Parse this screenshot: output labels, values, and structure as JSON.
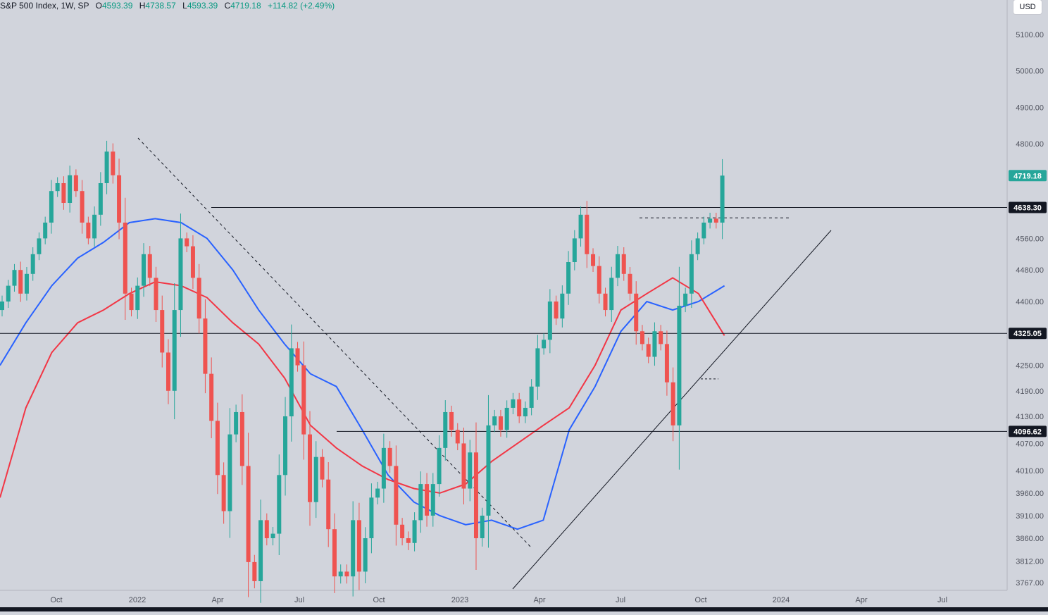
{
  "legend": {
    "symbol": "S&P 500 Index, 1W, SP",
    "open_label": "O",
    "open": "4593.39",
    "high_label": "H",
    "high": "4738.57",
    "low_label": "L",
    "low": "4593.39",
    "close_label": "C",
    "close": "4719.18",
    "change": "+114.82 (+2.49%)"
  },
  "currency": "USD",
  "colors": {
    "up": "#26a69a",
    "down": "#ef5350",
    "ma_fast": "#2962ff",
    "ma_slow": "#f23645",
    "last_price_badge": "#26a69a",
    "level_badge": "#131722",
    "background": "#d1d4dc"
  },
  "chart_data": {
    "type": "candlestick",
    "timeframe": "1W",
    "ylim": [
      3767,
      5140
    ],
    "y_ticks": [
      "5100.00",
      "5000.00",
      "4900.00",
      "4800.00",
      "4560.00",
      "4480.00",
      "4400.00",
      "4250.00",
      "4190.00",
      "4130.00",
      "4070.00",
      "4010.00",
      "3960.00",
      "3910.00",
      "3860.00",
      "3812.00",
      "3767.00"
    ],
    "x_ticks": [
      "Oct",
      "2022",
      "Apr",
      "Jul",
      "Oct",
      "2023",
      "Apr",
      "Jul",
      "Oct",
      "2024",
      "Apr",
      "Jul"
    ],
    "price_labels": [
      "4719.18",
      "4638.30",
      "4325.05",
      "4096.62"
    ],
    "levels": [
      4638.3,
      4325.05,
      4096.62
    ],
    "last_price": 4719.18,
    "moving_averages": [
      {
        "color": "#2962ff",
        "values": [
          4250,
          4350,
          4440,
          4510,
          4550,
          4600,
          4610,
          4600,
          4560,
          4480,
          4380,
          4300,
          4230,
          4200,
          4100,
          4000,
          3940,
          3910,
          3890,
          3900,
          3880,
          3900,
          4100,
          4200,
          4330,
          4400,
          4380,
          4400,
          4440
        ]
      },
      {
        "color": "#f23645",
        "values": [
          3950,
          4150,
          4280,
          4350,
          4380,
          4420,
          4450,
          4440,
          4410,
          4350,
          4300,
          4220,
          4110,
          4060,
          4020,
          3990,
          3970,
          3960,
          3980,
          4030,
          4070,
          4110,
          4150,
          4250,
          4380,
          4420,
          4460,
          4420,
          4320
        ]
      }
    ],
    "candles": [
      {
        "o": 4380,
        "c": 4400
      },
      {
        "o": 4400,
        "c": 4440
      },
      {
        "o": 4440,
        "c": 4480
      },
      {
        "o": 4480,
        "c": 4420
      },
      {
        "o": 4420,
        "c": 4470
      },
      {
        "o": 4470,
        "c": 4520
      },
      {
        "o": 4520,
        "c": 4560
      },
      {
        "o": 4560,
        "c": 4600
      },
      {
        "o": 4600,
        "c": 4680
      },
      {
        "o": 4680,
        "c": 4700
      },
      {
        "o": 4700,
        "c": 4650
      },
      {
        "o": 4650,
        "c": 4720
      },
      {
        "o": 4720,
        "c": 4680
      },
      {
        "o": 4680,
        "c": 4600
      },
      {
        "o": 4600,
        "c": 4560
      },
      {
        "o": 4560,
        "c": 4620
      },
      {
        "o": 4620,
        "c": 4700
      },
      {
        "o": 4700,
        "c": 4780
      },
      {
        "o": 4780,
        "c": 4720
      },
      {
        "o": 4720,
        "c": 4600
      },
      {
        "o": 4600,
        "c": 4420
      },
      {
        "o": 4420,
        "c": 4380
      },
      {
        "o": 4380,
        "c": 4440
      },
      {
        "o": 4440,
        "c": 4520
      },
      {
        "o": 4520,
        "c": 4460
      },
      {
        "o": 4460,
        "c": 4380
      },
      {
        "o": 4380,
        "c": 4280
      },
      {
        "o": 4280,
        "c": 4190
      },
      {
        "o": 4190,
        "c": 4380
      },
      {
        "o": 4380,
        "c": 4560
      },
      {
        "o": 4560,
        "c": 4540
      },
      {
        "o": 4540,
        "c": 4460
      },
      {
        "o": 4460,
        "c": 4360
      },
      {
        "o": 4360,
        "c": 4230
      },
      {
        "o": 4230,
        "c": 4120
      },
      {
        "o": 4120,
        "c": 4000
      },
      {
        "o": 4000,
        "c": 3920
      },
      {
        "o": 3920,
        "c": 4090
      },
      {
        "o": 4090,
        "c": 4140
      },
      {
        "o": 4140,
        "c": 4020
      },
      {
        "o": 4020,
        "c": 3810
      },
      {
        "o": 3810,
        "c": 3770
      },
      {
        "o": 3770,
        "c": 3900
      },
      {
        "o": 3900,
        "c": 3860
      },
      {
        "o": 3860,
        "c": 3870
      },
      {
        "o": 3870,
        "c": 4000
      },
      {
        "o": 4000,
        "c": 4130
      },
      {
        "o": 4130,
        "c": 4290
      },
      {
        "o": 4290,
        "c": 4250
      },
      {
        "o": 4250,
        "c": 4090
      },
      {
        "o": 4090,
        "c": 3940
      },
      {
        "o": 3940,
        "c": 4040
      },
      {
        "o": 4040,
        "c": 3990
      },
      {
        "o": 3990,
        "c": 3880
      },
      {
        "o": 3880,
        "c": 3780
      },
      {
        "o": 3780,
        "c": 3790
      },
      {
        "o": 3790,
        "c": 3780
      },
      {
        "o": 3780,
        "c": 3900
      },
      {
        "o": 3900,
        "c": 3790
      },
      {
        "o": 3790,
        "c": 3860
      },
      {
        "o": 3860,
        "c": 3950
      },
      {
        "o": 3950,
        "c": 3970
      },
      {
        "o": 3970,
        "c": 4060
      },
      {
        "o": 4060,
        "c": 4020
      },
      {
        "o": 4020,
        "c": 3890
      },
      {
        "o": 3890,
        "c": 3860
      },
      {
        "o": 3860,
        "c": 3850
      },
      {
        "o": 3850,
        "c": 3900
      },
      {
        "o": 3900,
        "c": 3980
      },
      {
        "o": 3980,
        "c": 3910
      },
      {
        "o": 3910,
        "c": 3980
      },
      {
        "o": 3980,
        "c": 4060
      },
      {
        "o": 4060,
        "c": 4140
      },
      {
        "o": 4140,
        "c": 4100
      },
      {
        "o": 4100,
        "c": 4070
      },
      {
        "o": 4070,
        "c": 3970
      },
      {
        "o": 3970,
        "c": 4050
      },
      {
        "o": 4050,
        "c": 3860
      },
      {
        "o": 3860,
        "c": 3910
      },
      {
        "o": 3910,
        "c": 4110
      },
      {
        "o": 4110,
        "c": 4130
      },
      {
        "o": 4130,
        "c": 4100
      },
      {
        "o": 4100,
        "c": 4150
      },
      {
        "o": 4150,
        "c": 4170
      },
      {
        "o": 4170,
        "c": 4130
      },
      {
        "o": 4130,
        "c": 4150
      },
      {
        "o": 4150,
        "c": 4200
      },
      {
        "o": 4200,
        "c": 4290
      },
      {
        "o": 4290,
        "c": 4310
      },
      {
        "o": 4310,
        "c": 4400
      },
      {
        "o": 4400,
        "c": 4360
      },
      {
        "o": 4360,
        "c": 4420
      },
      {
        "o": 4420,
        "c": 4500
      },
      {
        "o": 4500,
        "c": 4560
      },
      {
        "o": 4560,
        "c": 4620
      },
      {
        "o": 4620,
        "c": 4520
      },
      {
        "o": 4520,
        "c": 4490
      },
      {
        "o": 4490,
        "c": 4420
      },
      {
        "o": 4420,
        "c": 4380
      },
      {
        "o": 4380,
        "c": 4460
      },
      {
        "o": 4460,
        "c": 4520
      },
      {
        "o": 4520,
        "c": 4470
      },
      {
        "o": 4470,
        "c": 4420
      },
      {
        "o": 4420,
        "c": 4330
      },
      {
        "o": 4330,
        "c": 4300
      },
      {
        "o": 4300,
        "c": 4270
      },
      {
        "o": 4270,
        "c": 4330
      },
      {
        "o": 4330,
        "c": 4300
      },
      {
        "o": 4300,
        "c": 4210
      },
      {
        "o": 4210,
        "c": 4110
      },
      {
        "o": 4110,
        "c": 4390
      },
      {
        "o": 4390,
        "c": 4420
      },
      {
        "o": 4420,
        "c": 4520
      },
      {
        "o": 4520,
        "c": 4560
      },
      {
        "o": 4560,
        "c": 4600
      },
      {
        "o": 4600,
        "c": 4610
      },
      {
        "o": 4610,
        "c": 4600
      },
      {
        "o": 4600,
        "c": 4719.18
      }
    ]
  }
}
